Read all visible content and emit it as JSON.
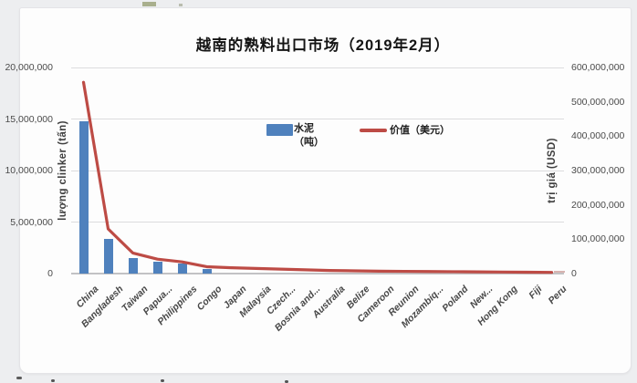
{
  "page": {
    "title": "越南的熟料出口市场（2019年2月）"
  },
  "legend": {
    "bar_label_line1": "水泥",
    "bar_label_line2": "（吨）",
    "line_label": "价值（美元）"
  },
  "axes": {
    "left_title": "lượng clinker (tấn)",
    "right_title": "trị giá (USD)",
    "left_ticks": [
      "20,000,000",
      "15,000,000",
      "10,000,000",
      "5,000,000",
      "0"
    ],
    "right_ticks": [
      "600,000,000",
      "500,000,000",
      "400,000,000",
      "300,000,000",
      "200,000,000",
      "100,000,000",
      "0"
    ]
  },
  "colors": {
    "bar": "#4f81bd",
    "line": "#bd4b45",
    "grid": "#dcdcde",
    "baseline": "#c2c2c4"
  },
  "chart_data": {
    "type": "bar",
    "subtype": "combo-bar-line-dual-axis",
    "title": "越南的熟料出口市场（2019年2月）",
    "categories": [
      "China",
      "Bangladesh",
      "Taiwan",
      "Papua...",
      "Philippines",
      "Congo",
      "Japan",
      "Malaysia",
      "Czech...",
      "Bosnia and...",
      "Australia",
      "Belize",
      "Cameroon",
      "Reunion",
      "Mozambiq...",
      "Poland",
      "New...",
      "Hong Kong",
      "Fiji",
      "Peru"
    ],
    "series": [
      {
        "name": "水泥（吨）",
        "type": "bar",
        "axis": "left",
        "values": [
          14800000,
          3350000,
          1500000,
          1150000,
          950000,
          450000,
          0,
          0,
          0,
          0,
          0,
          0,
          0,
          0,
          0,
          0,
          0,
          0,
          0,
          0
        ]
      },
      {
        "name": "价值（美元）",
        "type": "line",
        "axis": "right",
        "values": [
          557000000,
          130000000,
          60000000,
          42000000,
          34000000,
          20000000,
          17000000,
          15000000,
          13000000,
          11000000,
          9000000,
          8000000,
          7000000,
          6500000,
          6000000,
          5500000,
          5000000,
          4500000,
          4000000,
          3500000
        ]
      }
    ],
    "left_axis": {
      "label": "lượng clinker (tấn)",
      "range": [
        0,
        20000000
      ],
      "tick_step": 5000000
    },
    "right_axis": {
      "label": "trị giá (USD)",
      "range": [
        0,
        600000000
      ],
      "tick_step": 100000000
    },
    "legend_position": "top-center-inside",
    "grid": true,
    "xlabel_rotation_deg": -45
  }
}
